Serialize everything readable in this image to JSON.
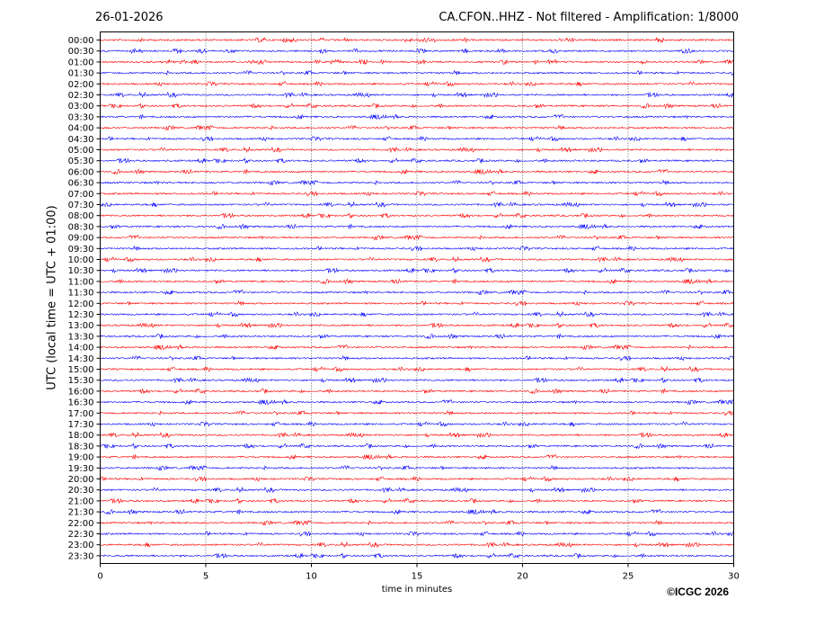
{
  "header": {
    "date": "26-01-2026",
    "title": "CA.CFON..HHZ - Not filtered - Amplification: 1/8000"
  },
  "footer": {
    "copyright": "©ICGC 2026"
  },
  "chart_data": {
    "type": "line",
    "title": "CA.CFON..HHZ - Not filtered - Amplification: 1/8000",
    "xlabel": "time in minutes",
    "ylabel": "UTC (local time = UTC + 01:00)",
    "xlim": [
      0,
      30
    ],
    "x_ticks": [
      0,
      5,
      10,
      15,
      20,
      25,
      30
    ],
    "grid": "vertical dotted lines at x ticks",
    "trace_colors": [
      "#ff0000",
      "#0000ff"
    ],
    "rows": [
      "00:00",
      "00:30",
      "01:00",
      "01:30",
      "02:00",
      "02:30",
      "03:00",
      "03:30",
      "04:00",
      "04:30",
      "05:00",
      "05:30",
      "06:00",
      "06:30",
      "07:00",
      "07:30",
      "08:00",
      "08:30",
      "09:00",
      "09:30",
      "10:00",
      "10:30",
      "11:00",
      "11:30",
      "12:00",
      "12:30",
      "13:00",
      "13:30",
      "14:00",
      "14:30",
      "15:00",
      "15:30",
      "16:00",
      "16:30",
      "17:00",
      "17:30",
      "18:00",
      "18:30",
      "19:00",
      "19:30",
      "20:00",
      "20:30",
      "21:00",
      "21:30",
      "22:00",
      "22:30",
      "23:00",
      "23:30"
    ]
  }
}
